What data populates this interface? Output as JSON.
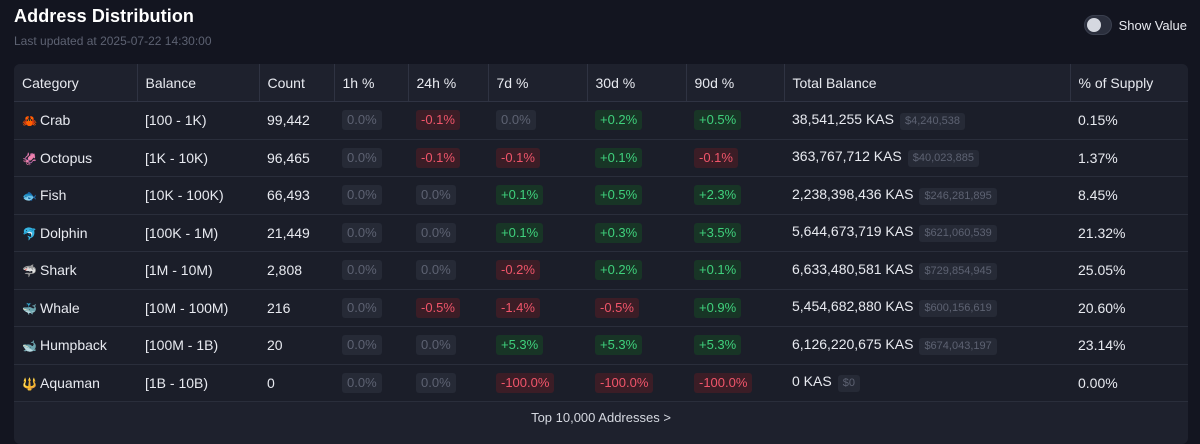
{
  "header": {
    "title": "Address Distribution",
    "subtitle": "Last updated at 2025-07-22 14:30:00"
  },
  "toggle": {
    "label": "Show Value",
    "on": false
  },
  "columns": [
    "Category",
    "Balance",
    "Count",
    "1h %",
    "24h %",
    "7d %",
    "30d %",
    "90d %",
    "Total Balance",
    "% of Supply"
  ],
  "rows": [
    {
      "icon": "🦀",
      "category": "Crab",
      "balance": "[100 - 1K)",
      "count": "99,442",
      "h1": {
        "v": "0.0%",
        "t": "neu"
      },
      "h24": {
        "v": "-0.1%",
        "t": "neg"
      },
      "d7": {
        "v": "0.0%",
        "t": "neu"
      },
      "d30": {
        "v": "+0.2%",
        "t": "pos"
      },
      "d90": {
        "v": "+0.5%",
        "t": "pos"
      },
      "total": "38,541,255 KAS",
      "value": "$4,240,538",
      "supply": "0.15%"
    },
    {
      "icon": "🦑",
      "category": "Octopus",
      "balance": "[1K - 10K)",
      "count": "96,465",
      "h1": {
        "v": "0.0%",
        "t": "neu"
      },
      "h24": {
        "v": "-0.1%",
        "t": "neg"
      },
      "d7": {
        "v": "-0.1%",
        "t": "neg"
      },
      "d30": {
        "v": "+0.1%",
        "t": "pos"
      },
      "d90": {
        "v": "-0.1%",
        "t": "neg"
      },
      "total": "363,767,712 KAS",
      "value": "$40,023,885",
      "supply": "1.37%"
    },
    {
      "icon": "🐟",
      "category": "Fish",
      "balance": "[10K - 100K)",
      "count": "66,493",
      "h1": {
        "v": "0.0%",
        "t": "neu"
      },
      "h24": {
        "v": "0.0%",
        "t": "neu"
      },
      "d7": {
        "v": "+0.1%",
        "t": "pos"
      },
      "d30": {
        "v": "+0.5%",
        "t": "pos"
      },
      "d90": {
        "v": "+2.3%",
        "t": "pos"
      },
      "total": "2,238,398,436 KAS",
      "value": "$246,281,895",
      "supply": "8.45%"
    },
    {
      "icon": "🐬",
      "category": "Dolphin",
      "balance": "[100K - 1M)",
      "count": "21,449",
      "h1": {
        "v": "0.0%",
        "t": "neu"
      },
      "h24": {
        "v": "0.0%",
        "t": "neu"
      },
      "d7": {
        "v": "+0.1%",
        "t": "pos"
      },
      "d30": {
        "v": "+0.3%",
        "t": "pos"
      },
      "d90": {
        "v": "+3.5%",
        "t": "pos"
      },
      "total": "5,644,673,719 KAS",
      "value": "$621,060,539",
      "supply": "21.32%"
    },
    {
      "icon": "🦈",
      "category": "Shark",
      "balance": "[1M - 10M)",
      "count": "2,808",
      "h1": {
        "v": "0.0%",
        "t": "neu"
      },
      "h24": {
        "v": "0.0%",
        "t": "neu"
      },
      "d7": {
        "v": "-0.2%",
        "t": "neg"
      },
      "d30": {
        "v": "+0.2%",
        "t": "pos"
      },
      "d90": {
        "v": "+0.1%",
        "t": "pos"
      },
      "total": "6,633,480,581 KAS",
      "value": "$729,854,945",
      "supply": "25.05%"
    },
    {
      "icon": "🐳",
      "category": "Whale",
      "balance": "[10M - 100M)",
      "count": "216",
      "h1": {
        "v": "0.0%",
        "t": "neu"
      },
      "h24": {
        "v": "-0.5%",
        "t": "neg"
      },
      "d7": {
        "v": "-1.4%",
        "t": "neg"
      },
      "d30": {
        "v": "-0.5%",
        "t": "neg"
      },
      "d90": {
        "v": "+0.9%",
        "t": "pos"
      },
      "total": "5,454,682,880 KAS",
      "value": "$600,156,619",
      "supply": "20.60%"
    },
    {
      "icon": "🐋",
      "category": "Humpback",
      "balance": "[100M - 1B)",
      "count": "20",
      "h1": {
        "v": "0.0%",
        "t": "neu"
      },
      "h24": {
        "v": "0.0%",
        "t": "neu"
      },
      "d7": {
        "v": "+5.3%",
        "t": "pos"
      },
      "d30": {
        "v": "+5.3%",
        "t": "pos"
      },
      "d90": {
        "v": "+5.3%",
        "t": "pos"
      },
      "total": "6,126,220,675 KAS",
      "value": "$674,043,197",
      "supply": "23.14%"
    },
    {
      "icon": "🔱",
      "category": "Aquaman",
      "balance": "[1B - 10B)",
      "count": "0",
      "h1": {
        "v": "0.0%",
        "t": "neu"
      },
      "h24": {
        "v": "0.0%",
        "t": "neu"
      },
      "d7": {
        "v": "-100.0%",
        "t": "neg"
      },
      "d30": {
        "v": "-100.0%",
        "t": "neg"
      },
      "d90": {
        "v": "-100.0%",
        "t": "neg"
      },
      "total": "0 KAS",
      "value": "$0",
      "supply": "0.00%"
    }
  ],
  "footer": {
    "link": "Top 10,000 Addresses >"
  },
  "colors": {
    "background": "#131520",
    "positive": "#3fd07c",
    "negative": "#f0556a",
    "neutral": "#5d6272"
  }
}
